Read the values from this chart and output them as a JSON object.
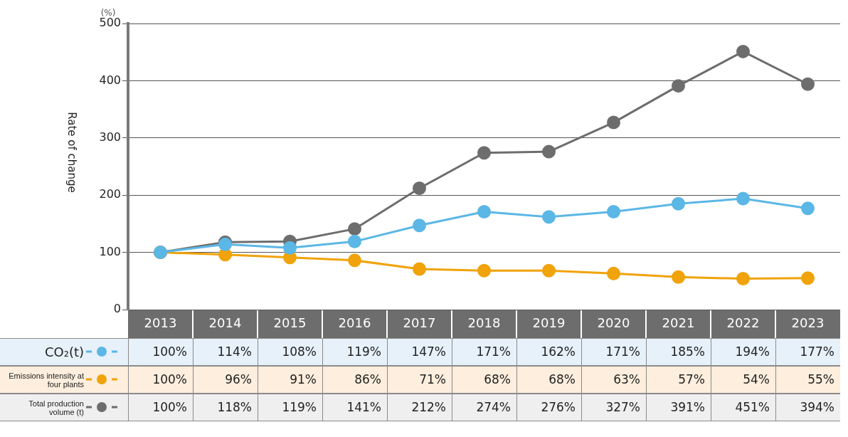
{
  "chart_data": {
    "type": "line",
    "ylabel": "Rate of change",
    "annotations": [
      "(%)"
    ],
    "categories": [
      "2013",
      "2014",
      "2015",
      "2016",
      "2017",
      "2018",
      "2019",
      "2020",
      "2021",
      "2022",
      "2023"
    ],
    "ylim": [
      0,
      500
    ],
    "yticks": [
      0,
      100,
      200,
      300,
      400,
      500
    ],
    "grid": "y",
    "legend": "bottom left",
    "marker": "circle",
    "line_style": "solid",
    "series": [
      {
        "name": "CO₂(t)",
        "color": "#5bb7e5",
        "values": [
          100,
          114,
          108,
          119,
          147,
          171,
          162,
          171,
          185,
          194,
          177
        ],
        "value_labels": [
          "100%",
          "114%",
          "108%",
          "119%",
          "147%",
          "171%",
          "162%",
          "171%",
          "185%",
          "194%",
          "177%"
        ]
      },
      {
        "name": "Emissions intensity at four plants",
        "color": "#f0a30a",
        "values": [
          100,
          96,
          91,
          86,
          71,
          68,
          68,
          63,
          57,
          54,
          55
        ],
        "value_labels": [
          "100%",
          "96%",
          "91%",
          "86%",
          "71%",
          "68%",
          "68%",
          "63%",
          "57%",
          "54%",
          "55%"
        ]
      },
      {
        "name": "Total production volume (t)",
        "color": "#6d6d6d",
        "values": [
          100,
          118,
          119,
          141,
          212,
          274,
          276,
          327,
          391,
          451,
          394
        ],
        "value_labels": [
          "100%",
          "118%",
          "119%",
          "141%",
          "212%",
          "274%",
          "276%",
          "327%",
          "391%",
          "451%",
          "394%"
        ]
      }
    ]
  }
}
